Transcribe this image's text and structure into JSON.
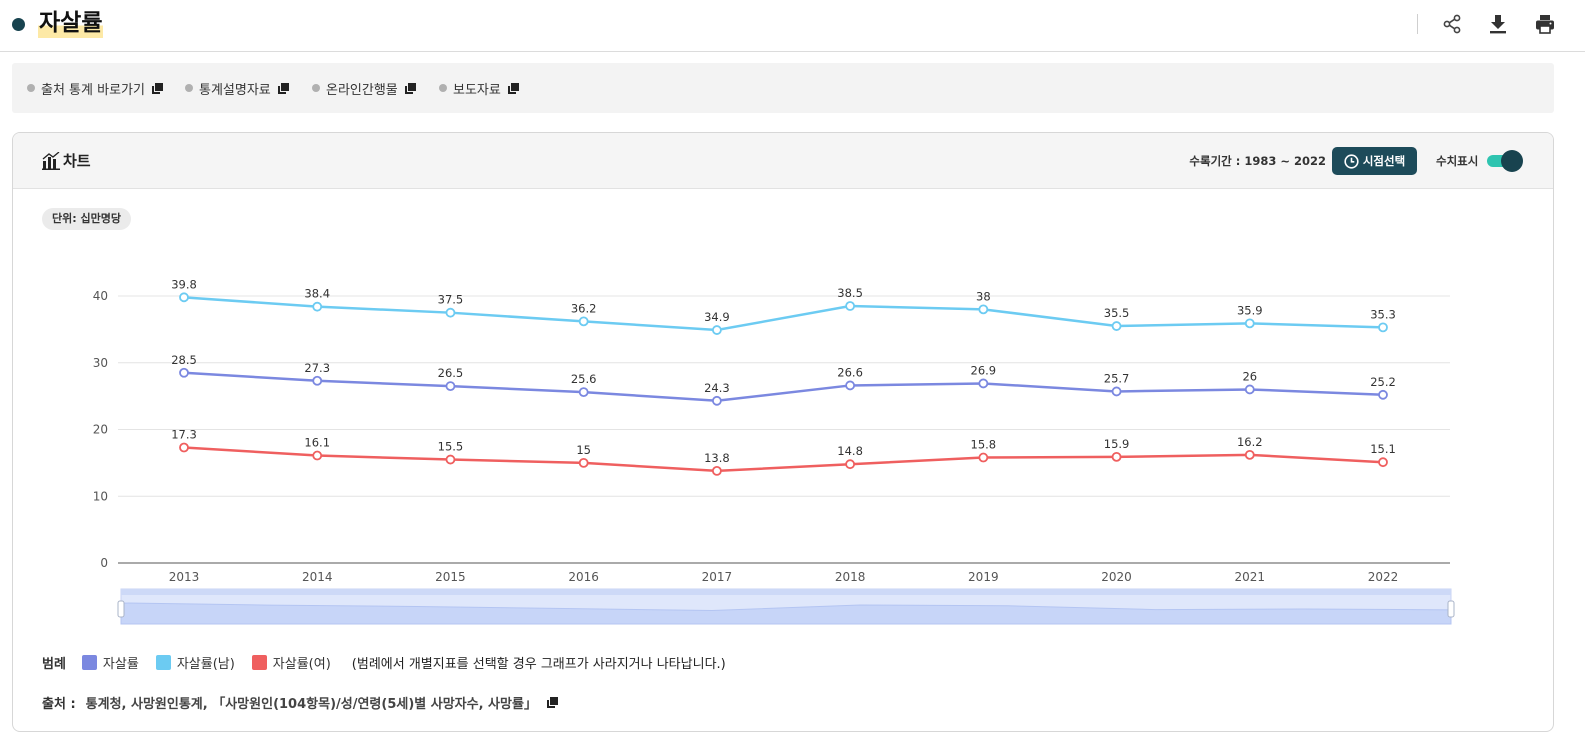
{
  "page": {
    "title": "자살률"
  },
  "top_actions": [
    {
      "icon": "share-icon"
    },
    {
      "icon": "download-icon"
    },
    {
      "icon": "print-icon"
    }
  ],
  "links": [
    {
      "label": "출처 통계 바로가기"
    },
    {
      "label": "통계설명자료"
    },
    {
      "label": "온라인간행물"
    },
    {
      "label": "보도자료"
    }
  ],
  "panel": {
    "title": "차트",
    "period": "수록기간 : 1983 ~ 2022",
    "time_button": "시점선택",
    "value_toggle_label": "수치표시",
    "value_toggle_on": true,
    "unit": "단위: 십만명당"
  },
  "legend": {
    "title": "범례",
    "note": "(범례에서 개별지표를 선택할 경우 그래프가 사라지거나 나타납니다.)"
  },
  "source": {
    "title": "출처 :",
    "text": "통계청, 사망원인통계, 「사망원인(104항목)/성/연령(5세)별 사망자수, 사망률」"
  },
  "chart_data": {
    "type": "line",
    "categories": [
      "2013",
      "2014",
      "2015",
      "2016",
      "2017",
      "2018",
      "2019",
      "2020",
      "2021",
      "2022"
    ],
    "ylim": [
      0,
      40
    ],
    "yticks": [
      0,
      10,
      20,
      30,
      40
    ],
    "grid": true,
    "legend_position": "bottom",
    "data_labels": true,
    "series": [
      {
        "name": "자살률",
        "color": "#7b88e0",
        "values": [
          28.5,
          27.3,
          26.5,
          25.6,
          24.3,
          26.6,
          26.9,
          25.7,
          26,
          25.2
        ]
      },
      {
        "name": "자살률(남)",
        "color": "#6ccbf2",
        "values": [
          39.8,
          38.4,
          37.5,
          36.2,
          34.9,
          38.5,
          38,
          35.5,
          35.9,
          35.3
        ]
      },
      {
        "name": "자살률(여)",
        "color": "#ef5f5f",
        "values": [
          17.3,
          16.1,
          15.5,
          15,
          13.8,
          14.8,
          15.8,
          15.9,
          16.2,
          15.1
        ]
      }
    ]
  }
}
